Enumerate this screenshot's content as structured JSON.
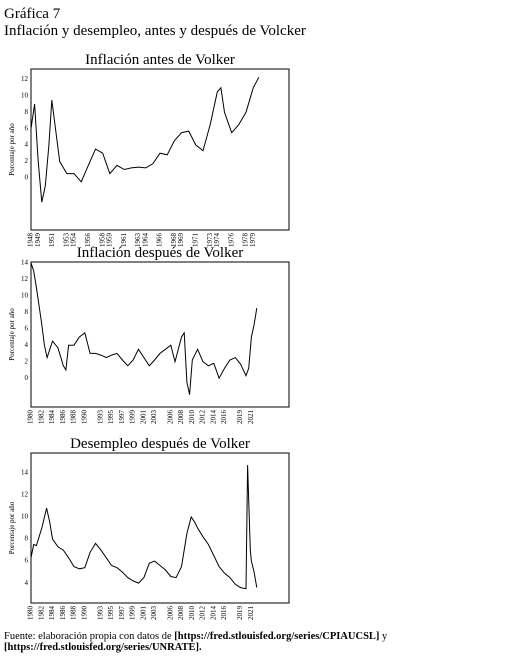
{
  "figure": {
    "label": "Gráfica 7",
    "title": "Inflación y desempleo, antes y después de Volcker",
    "source_prefix": "Fuente: elaboración propia con datos de",
    "source_link1": "[https://fred.stlouisfed.org/series/CPIAUCSL]",
    "source_and": "y",
    "source_link2": "[https://fred.stlouisfed.org/series/UNRATE]."
  },
  "chart_data": [
    {
      "type": "line",
      "title": "Inflación antes de Volker",
      "ylabel": "Porcentaje por año",
      "color": "#000000",
      "xlim": [
        1948,
        1984
      ],
      "ylim": [
        -6.4,
        13.3
      ],
      "xticks": [
        1948,
        1949,
        1951,
        1953,
        1954,
        1956,
        1958,
        1959,
        1961,
        1963,
        1964,
        1966,
        1968,
        1969,
        1971,
        1973,
        1974,
        1976,
        1978,
        1979
      ],
      "yticks": [
        0,
        2,
        4,
        6,
        8,
        10,
        12
      ],
      "x": [
        1948,
        1948.5,
        1949,
        1949.5,
        1950,
        1950.5,
        1950.9,
        1952,
        1953,
        1954,
        1955,
        1956,
        1957,
        1958,
        1959,
        1960,
        1961,
        1962,
        1963,
        1964,
        1965,
        1966,
        1967,
        1968,
        1969,
        1970,
        1971,
        1972,
        1973,
        1974,
        1974.5,
        1975,
        1976,
        1977,
        1978,
        1979,
        1979.8
      ],
      "values": [
        6,
        9,
        2,
        -3,
        -1,
        4,
        9.5,
        2,
        0.5,
        0.5,
        -0.5,
        1.5,
        3.5,
        3,
        0.5,
        1.5,
        1,
        1.2,
        1.3,
        1.2,
        1.7,
        3,
        2.8,
        4.5,
        5.5,
        5.7,
        4,
        3.3,
        6.5,
        10.5,
        11,
        8,
        5.5,
        6.5,
        8,
        11,
        12.3
      ]
    },
    {
      "type": "line",
      "title": "Inflación después de Volker",
      "ylabel": "Porcentaje por año",
      "color": "#000000",
      "xlim": [
        1980,
        2028
      ],
      "ylim": [
        -3.5,
        14.1
      ],
      "xticks": [
        1980,
        1982,
        1984,
        1986,
        1988,
        1990,
        1993,
        1995,
        1997,
        1999,
        2001,
        2003,
        2006,
        2008,
        2010,
        2012,
        2014,
        2016,
        2019,
        2021
      ],
      "yticks": [
        0,
        2,
        4,
        6,
        8,
        10,
        12,
        14
      ],
      "x": [
        1980,
        1980.5,
        1981,
        1982,
        1982.5,
        1983,
        1984,
        1985,
        1986,
        1986.5,
        1987,
        1988,
        1989,
        1990,
        1991,
        1992,
        1993,
        1994,
        1995,
        1996,
        1997,
        1998,
        1999,
        2000,
        2001,
        2002,
        2003,
        2004,
        2005,
        2006,
        2006.8,
        2007,
        2008,
        2008.5,
        2009,
        2009.5,
        2010,
        2011,
        2012,
        2013,
        2014,
        2015,
        2016,
        2017,
        2018,
        2019,
        2020,
        2020.5,
        2021,
        2021.5,
        2022
      ],
      "values": [
        14,
        13,
        11,
        6.5,
        4,
        2.5,
        4.5,
        3.7,
        1.5,
        1,
        4,
        4,
        5,
        5.5,
        3,
        3,
        2.8,
        2.5,
        2.8,
        3,
        2.2,
        1.5,
        2.2,
        3.5,
        2.5,
        1.5,
        2.2,
        3,
        3.5,
        4,
        2,
        2.5,
        5,
        5.5,
        -0.5,
        -2,
        2.2,
        3.5,
        2,
        1.5,
        1.8,
        0,
        1.2,
        2.2,
        2.5,
        1.7,
        0.3,
        1.2,
        5,
        6.5,
        8.5
      ]
    },
    {
      "type": "line",
      "title": "Desempleo después de Volker",
      "ylabel": "Porcentaje por año",
      "color": "#000000",
      "xlim": [
        1980,
        2028
      ],
      "ylim": [
        2.2,
        15.8
      ],
      "xticks": [
        1980,
        1982,
        1984,
        1986,
        1988,
        1990,
        1993,
        1995,
        1997,
        1999,
        2001,
        2003,
        2006,
        2008,
        2010,
        2012,
        2014,
        2016,
        2019,
        2021
      ],
      "yticks": [
        4,
        6,
        8,
        10,
        12,
        14
      ],
      "x": [
        1980,
        1980.5,
        1981,
        1982,
        1982.9,
        1983.5,
        1984,
        1985,
        1986,
        1987,
        1988,
        1989,
        1990,
        1991,
        1992,
        1993,
        1994,
        1995,
        1996,
        1997,
        1998,
        1999,
        2000,
        2001,
        2002,
        2003,
        2004,
        2005,
        2006,
        2007,
        2008,
        2009,
        2009.8,
        2010.5,
        2011,
        2012,
        2013,
        2014,
        2015,
        2016,
        2017,
        2018,
        2019,
        2020,
        2020.3,
        2020.8,
        2021,
        2021.5,
        2022
      ],
      "values": [
        6.3,
        7.5,
        7.4,
        9,
        10.8,
        9.5,
        8,
        7.3,
        7,
        6.3,
        5.5,
        5.3,
        5.4,
        6.8,
        7.6,
        7,
        6.3,
        5.6,
        5.4,
        5,
        4.5,
        4.2,
        4,
        4.5,
        5.8,
        6,
        5.6,
        5.2,
        4.6,
        4.5,
        5.5,
        8.5,
        10,
        9.5,
        9,
        8.2,
        7.5,
        6.5,
        5.5,
        4.9,
        4.5,
        3.9,
        3.6,
        3.5,
        14.7,
        7,
        6,
        5,
        3.6
      ]
    }
  ]
}
